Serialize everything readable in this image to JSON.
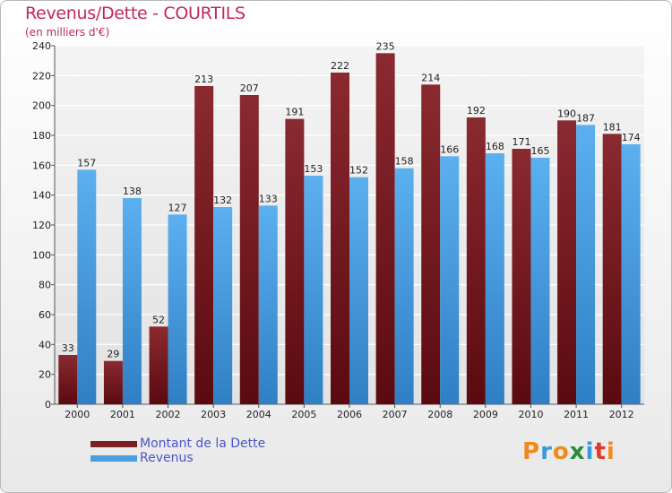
{
  "chart_data": {
    "type": "bar",
    "title": "Revenus/Dette - COURTILS",
    "subtitle": "(en milliers d'€)",
    "categories": [
      "2000",
      "2001",
      "2002",
      "2003",
      "2004",
      "2005",
      "2006",
      "2007",
      "2008",
      "2009",
      "2010",
      "2011",
      "2012"
    ],
    "series": [
      {
        "name": "Montant de la Dette",
        "color": "#7a1f25",
        "values": [
          33,
          29,
          52,
          213,
          207,
          191,
          222,
          235,
          214,
          192,
          171,
          190,
          181
        ]
      },
      {
        "name": "Revenus",
        "color": "#4a9fe0",
        "values": [
          157,
          138,
          127,
          132,
          133,
          153,
          152,
          158,
          166,
          168,
          165,
          187,
          174
        ]
      }
    ],
    "ylim": [
      0,
      240
    ],
    "yticks": [
      0,
      20,
      40,
      60,
      80,
      100,
      120,
      140,
      160,
      180,
      200,
      220,
      240
    ],
    "grid": true,
    "legend_position": "bottom-left"
  },
  "logo": {
    "letters": [
      "P",
      "r",
      "o",
      "x",
      "i",
      "t",
      "i"
    ],
    "colors": [
      "#f08a1c",
      "#3a9ad9",
      "#f08a1c",
      "#2e8b3a",
      "#3a9ad9",
      "#e03a2a",
      "#f08a1c"
    ]
  }
}
